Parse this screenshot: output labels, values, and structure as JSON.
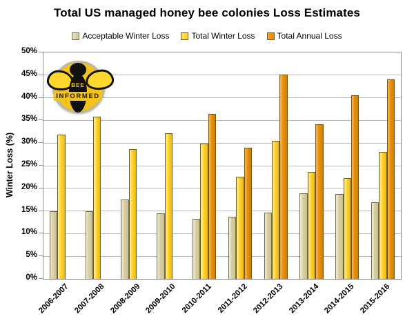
{
  "title": "Total US managed honey bee colonies Loss Estimates",
  "logo": {
    "text_top": "BEE",
    "text_bottom": "INFORMED"
  },
  "chart_data": {
    "type": "bar",
    "title": "Total US managed honey bee colonies Loss Estimates",
    "xlabel": "",
    "ylabel": "Winter Loss (%)",
    "ylim": [
      0,
      50
    ],
    "ytick_step": 5,
    "ytick_labels": [
      "0%",
      "5%",
      "10%",
      "15%",
      "20%",
      "25%",
      "30%",
      "35%",
      "40%",
      "45%",
      "50%"
    ],
    "grid": true,
    "legend_position": "top",
    "categories": [
      "2006-2007",
      "2007-2008",
      "2008-2009",
      "2009-2010",
      "2010-2011",
      "2011-2012",
      "2012-2013",
      "2013-2014",
      "2014-2015",
      "2015-2016"
    ],
    "series": [
      {
        "name": "Acceptable Winter Loss",
        "color": "#d6cfa3",
        "color_light": "#ece6c9",
        "color_shade": "#c9c190",
        "border": "#73694a",
        "values": [
          15.0,
          15.0,
          17.6,
          14.5,
          13.2,
          13.7,
          14.6,
          18.9,
          18.7,
          16.9
        ]
      },
      {
        "name": "Total Winter Loss",
        "color": "#ffd42e",
        "color_light": "#ffe886",
        "color_shade": "#edb817",
        "border": "#6e5e14",
        "values": [
          31.8,
          35.8,
          28.6,
          32.2,
          29.9,
          22.5,
          30.5,
          23.7,
          22.3,
          28.1
        ]
      },
      {
        "name": "Total Annual Loss",
        "color": "#e5900e",
        "color_light": "#f3ae44",
        "color_shade": "#d07f06",
        "border": "#7c5407",
        "values": [
          null,
          null,
          null,
          null,
          36.4,
          29.0,
          45.1,
          34.2,
          40.6,
          44.1
        ]
      }
    ]
  }
}
